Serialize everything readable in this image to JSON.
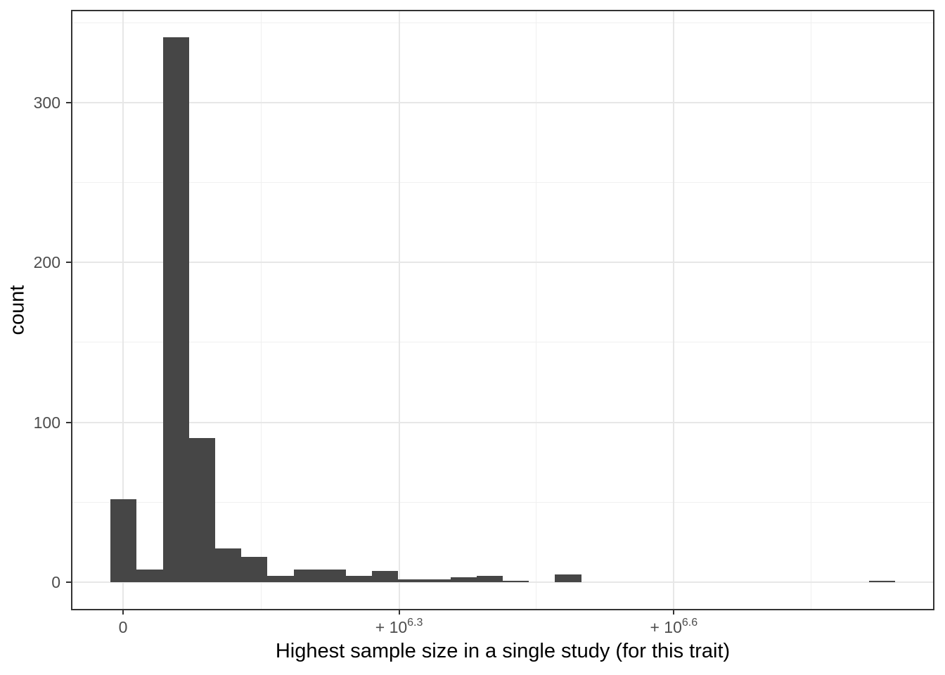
{
  "chart_data": {
    "type": "bar",
    "subtype": "histogram",
    "title": "",
    "xlabel": "Highest sample size in a single study (for this trait)",
    "ylabel": "count",
    "bin_start": -90000,
    "bin_width": 189000,
    "counts": [
      52,
      8,
      341,
      90,
      21,
      16,
      4,
      8,
      8,
      4,
      7,
      2,
      2,
      3,
      4,
      1,
      0,
      5,
      0,
      0,
      0,
      0,
      0,
      0,
      0,
      0,
      0,
      0,
      0,
      1
    ],
    "x_ticks": [
      {
        "value": 0,
        "base": "0",
        "exp": ""
      },
      {
        "value": 1995262,
        "base": "+ 10",
        "exp": "6.3"
      },
      {
        "value": 3981072,
        "base": "+ 10",
        "exp": "6.6"
      }
    ],
    "x_minor_gridlines": [
      997631,
      2988167,
      4973978
    ],
    "y_ticks": [
      {
        "value": 0,
        "label": "0"
      },
      {
        "value": 100,
        "label": "100"
      },
      {
        "value": 200,
        "label": "200"
      },
      {
        "value": 300,
        "label": "300"
      }
    ],
    "y_minor_gridlines": [
      50,
      150,
      250,
      350
    ],
    "x_range": [
      -371000,
      5860000
    ],
    "y_range": [
      -17.1,
      357.5
    ],
    "grid": "on",
    "legend": "none",
    "colors": {
      "bar_fill": "#464646",
      "panel_border": "#333333",
      "grid_major": "#e7e7e7",
      "grid_minor": "#f0f0f0",
      "tick_mark": "#333333",
      "tick_label": "#4d4d4d",
      "axis_title": "#000000",
      "background": "#ffffff"
    }
  }
}
